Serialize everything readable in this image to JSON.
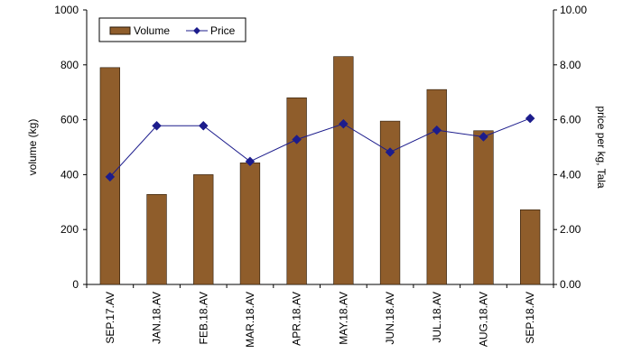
{
  "colors": {
    "bar_fill": "#8f5d2b",
    "bar_stroke": "#2a1a0a",
    "line": "#1c1c8c",
    "marker": "#1c1c8c",
    "axis": "#000000",
    "background": "#ffffff"
  },
  "chart_data": {
    "type": "bar",
    "title": "",
    "xlabel": "",
    "ylabel": "volume (kg)",
    "y2label": "price per kg, Tala",
    "ylim": [
      0,
      1000
    ],
    "y2lim": [
      0,
      10
    ],
    "grid": false,
    "legend_position": "top-left",
    "categories": [
      "SEP.17.AV",
      "JAN.18.AV",
      "FEB.18.AV",
      "MAR.18.AV",
      "APR.18.AV",
      "MAY.18.AV",
      "JUN.18.AV",
      "JUL.18.AV",
      "AUG.18.AV",
      "SEP.18.AV"
    ],
    "y_ticks": [
      "0",
      "200",
      "400",
      "600",
      "800",
      "1000"
    ],
    "y2_ticks": [
      "0.00",
      "2.00",
      "4.00",
      "6.00",
      "8.00",
      "10.00"
    ],
    "series": [
      {
        "name": "Volume",
        "type": "bar",
        "axis": "left",
        "values": [
          790,
          328,
          400,
          443,
          680,
          830,
          595,
          710,
          560,
          272
        ]
      },
      {
        "name": "Price",
        "type": "line",
        "axis": "right",
        "marker": "diamond",
        "values": [
          3.92,
          5.78,
          5.78,
          4.48,
          5.28,
          5.85,
          4.82,
          5.62,
          5.38,
          6.05
        ]
      }
    ]
  }
}
